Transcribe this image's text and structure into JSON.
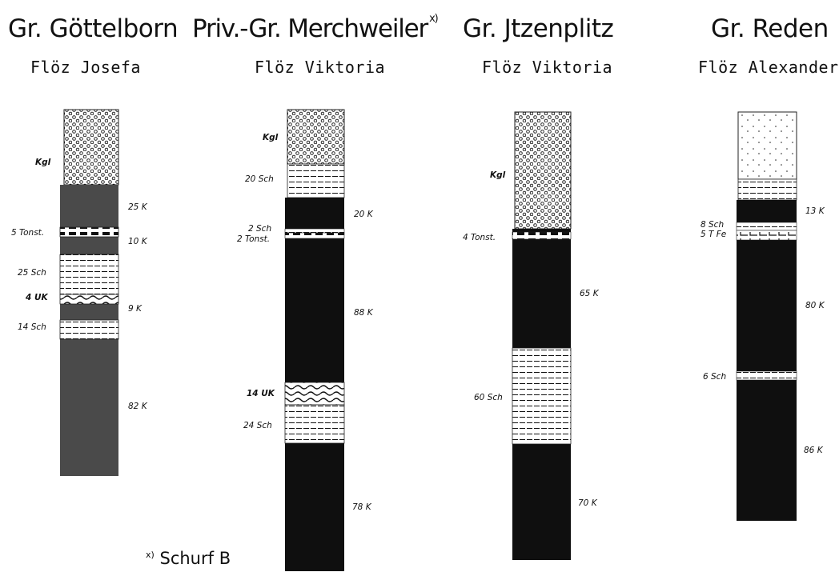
{
  "columns": [
    {
      "title": "Gr. Göttelborn",
      "subtitle": "Flöz Josefa",
      "labels_left": [
        "Kgl",
        "5 Tonst.",
        "25 Sch",
        "4 UK",
        "14 Sch"
      ],
      "labels_right": [
        "25 K",
        "10 K",
        "9 K",
        "82 K"
      ]
    },
    {
      "title": "Priv.-Gr. Merchweiler",
      "title_marker": "x)",
      "subtitle": "Flöz Viktoria",
      "labels_left": [
        "Kgl",
        "20 Sch",
        "2 Sch",
        "2 Tonst.",
        "14 UK",
        "24 Sch"
      ],
      "labels_right": [
        "20 K",
        "88 K",
        "78 K"
      ]
    },
    {
      "title": "Gr. Jtzenplitz",
      "subtitle": "Flöz Viktoria",
      "labels_left": [
        "Kgl",
        "4 Tonst.",
        "60 Sch"
      ],
      "labels_right": [
        "65 K",
        "70 K"
      ]
    },
    {
      "title": "Gr. Reden",
      "subtitle": "Flöz Alexander",
      "labels_left": [
        "8 Sch",
        "5 T Fe",
        "6 Sch"
      ],
      "labels_right": [
        "13 K",
        "80 K",
        "86 K"
      ]
    }
  ],
  "footnote": {
    "marker": "x)",
    "text": "Schurf B"
  }
}
